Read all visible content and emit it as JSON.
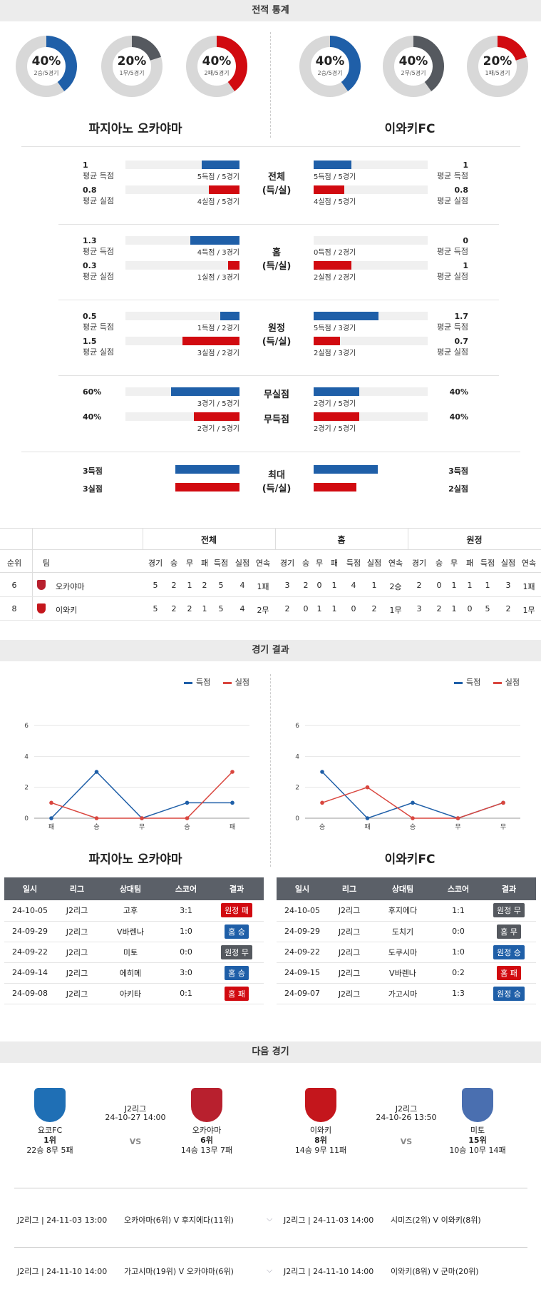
{
  "section_stats": {
    "title": "전적 통계"
  },
  "donuts": [
    {
      "pct": "40%",
      "sub": "2승/5경기",
      "value": 0.4,
      "color": "#1f5fa8"
    },
    {
      "pct": "20%",
      "sub": "1무/5경기",
      "value": 0.2,
      "color": "#55595f"
    },
    {
      "pct": "40%",
      "sub": "2패/5경기",
      "value": 0.4,
      "color": "#d10a10"
    },
    {
      "pct": "40%",
      "sub": "2승/5경기",
      "value": 0.4,
      "color": "#1f5fa8"
    },
    {
      "pct": "40%",
      "sub": "2무/5경기",
      "value": 0.4,
      "color": "#55595f"
    },
    {
      "pct": "20%",
      "sub": "1패/5경기",
      "value": 0.2,
      "color": "#d10a10"
    }
  ],
  "teams": {
    "home": "파지아노 오카야마",
    "away": "이와키FC"
  },
  "stat_groups": [
    {
      "label": "전체\n(득/실)",
      "rows": [
        {
          "l_val": "1",
          "l_lbl": "평균 득점",
          "l_cap": "5득점 / 5경기",
          "l_frac": 0.33,
          "r_val": "1",
          "r_lbl": "평균 득점",
          "r_cap": "5득점 / 5경기",
          "r_frac": 0.33,
          "color": "blue"
        },
        {
          "l_val": "0.8",
          "l_lbl": "평균 실점",
          "l_cap": "4실점 / 5경기",
          "l_frac": 0.27,
          "r_val": "0.8",
          "r_lbl": "평균 실점",
          "r_cap": "4실점 / 5경기",
          "r_frac": 0.27,
          "color": "red"
        }
      ]
    },
    {
      "label": "홈\n(득/실)",
      "rows": [
        {
          "l_val": "1.3",
          "l_lbl": "평균 득점",
          "l_cap": "4득점 / 3경기",
          "l_frac": 0.43,
          "r_val": "0",
          "r_lbl": "평균 득점",
          "r_cap": "0득점 / 2경기",
          "r_frac": 0,
          "color": "blue"
        },
        {
          "l_val": "0.3",
          "l_lbl": "평균 실점",
          "l_cap": "1실점 / 3경기",
          "l_frac": 0.1,
          "r_val": "1",
          "r_lbl": "평균 실점",
          "r_cap": "2실점 / 2경기",
          "r_frac": 0.33,
          "color": "red"
        }
      ]
    },
    {
      "label": "원정\n(득/실)",
      "rows": [
        {
          "l_val": "0.5",
          "l_lbl": "평균 득점",
          "l_cap": "1득점 / 2경기",
          "l_frac": 0.17,
          "r_val": "1.7",
          "r_lbl": "평균 득점",
          "r_cap": "5득점 / 3경기",
          "r_frac": 0.57,
          "color": "blue"
        },
        {
          "l_val": "1.5",
          "l_lbl": "평균 실점",
          "l_cap": "3실점 / 2경기",
          "l_frac": 0.5,
          "r_val": "0.7",
          "r_lbl": "평균 실점",
          "r_cap": "2실점 / 3경기",
          "r_frac": 0.23,
          "color": "red"
        }
      ]
    }
  ],
  "clean_rows": [
    {
      "mid": "무실점",
      "l_val": "60%",
      "l_cap": "3경기 / 5경기",
      "l_frac": 0.6,
      "r_val": "40%",
      "r_cap": "2경기 / 5경기",
      "r_frac": 0.4,
      "color": "blue"
    },
    {
      "mid": "무득점",
      "l_val": "40%",
      "l_cap": "2경기 / 5경기",
      "l_frac": 0.4,
      "r_val": "40%",
      "r_cap": "2경기 / 5경기",
      "r_frac": 0.4,
      "color": "red"
    }
  ],
  "max_group": {
    "label": "최대\n(득/실)",
    "rows": [
      {
        "l_val": "3득점",
        "l_frac": 0.75,
        "r_val": "3득점",
        "r_frac": 0.75,
        "color": "blue"
      },
      {
        "l_val": "3실점",
        "l_frac": 0.75,
        "r_val": "2실점",
        "r_frac": 0.5,
        "color": "red"
      }
    ]
  },
  "standings": {
    "groups": [
      "전체",
      "홈",
      "원정"
    ],
    "cols_left": [
      "순위",
      "팀"
    ],
    "cols": [
      "경기",
      "승",
      "무",
      "패",
      "득점",
      "실점",
      "연속"
    ],
    "rows": [
      {
        "rank": "6",
        "team": "오카야마",
        "vals": [
          "5",
          "2",
          "1",
          "2",
          "5",
          "4",
          "1패",
          "3",
          "2",
          "0",
          "1",
          "4",
          "1",
          "2승",
          "2",
          "0",
          "1",
          "1",
          "1",
          "3",
          "1패"
        ]
      },
      {
        "rank": "8",
        "team": "이와키",
        "vals": [
          "5",
          "2",
          "2",
          "1",
          "5",
          "4",
          "2무",
          "2",
          "0",
          "1",
          "1",
          "0",
          "2",
          "1무",
          "3",
          "2",
          "1",
          "0",
          "5",
          "2",
          "1무"
        ]
      }
    ]
  },
  "section_results": {
    "title": "경기 결과"
  },
  "legend": {
    "scored": "득점",
    "conceded": "실점"
  },
  "chart_data": [
    {
      "type": "line",
      "categories": [
        "패",
        "승",
        "무",
        "승",
        "패"
      ],
      "series": [
        {
          "name": "득점",
          "values": [
            0,
            3,
            0,
            1,
            1
          ],
          "color": "#1f5fa8"
        },
        {
          "name": "실점",
          "values": [
            1,
            0,
            0,
            0,
            3
          ],
          "color": "#d9463e"
        }
      ],
      "y_ticks": [
        0,
        2,
        4,
        6
      ],
      "ylim": [
        0,
        6
      ]
    },
    {
      "type": "line",
      "categories": [
        "승",
        "패",
        "승",
        "무",
        "무"
      ],
      "series": [
        {
          "name": "득점",
          "values": [
            3,
            0,
            1,
            0,
            1
          ],
          "color": "#1f5fa8"
        },
        {
          "name": "실점",
          "values": [
            1,
            2,
            0,
            0,
            1
          ],
          "color": "#d9463e"
        }
      ],
      "y_ticks": [
        0,
        2,
        4,
        6
      ],
      "ylim": [
        0,
        6
      ]
    }
  ],
  "results_tables": [
    {
      "team": "파지아노 오카야마",
      "headers": [
        "일시",
        "리그",
        "상대팀",
        "스코어",
        "결과"
      ],
      "rows": [
        {
          "date": "24-10-05",
          "league": "J2리그",
          "opp": "고후",
          "score": "3:1",
          "result": "원정 패",
          "kind": "loss"
        },
        {
          "date": "24-09-29",
          "league": "J2리그",
          "opp": "V바렌나",
          "score": "1:0",
          "result": "홈 승",
          "kind": "win"
        },
        {
          "date": "24-09-22",
          "league": "J2리그",
          "opp": "미토",
          "score": "0:0",
          "result": "원정 무",
          "kind": "draw"
        },
        {
          "date": "24-09-14",
          "league": "J2리그",
          "opp": "에히메",
          "score": "3:0",
          "result": "홈 승",
          "kind": "win"
        },
        {
          "date": "24-09-08",
          "league": "J2리그",
          "opp": "아키타",
          "score": "0:1",
          "result": "홈 패",
          "kind": "loss"
        }
      ]
    },
    {
      "team": "이와키FC",
      "headers": [
        "일시",
        "리그",
        "상대팀",
        "스코어",
        "결과"
      ],
      "rows": [
        {
          "date": "24-10-05",
          "league": "J2리그",
          "opp": "후지에다",
          "score": "1:1",
          "result": "원정 무",
          "kind": "draw"
        },
        {
          "date": "24-09-29",
          "league": "J2리그",
          "opp": "도치기",
          "score": "0:0",
          "result": "홈 무",
          "kind": "draw"
        },
        {
          "date": "24-09-22",
          "league": "J2리그",
          "opp": "도쿠시마",
          "score": "1:0",
          "result": "원정 승",
          "kind": "win"
        },
        {
          "date": "24-09-15",
          "league": "J2리그",
          "opp": "V바렌나",
          "score": "0:2",
          "result": "홈 패",
          "kind": "loss"
        },
        {
          "date": "24-09-07",
          "league": "J2리그",
          "opp": "가고시마",
          "score": "1:3",
          "result": "원정 승",
          "kind": "win"
        }
      ]
    }
  ],
  "section_next": {
    "title": "다음 경기"
  },
  "next_matches": [
    {
      "league": "J2리그",
      "datetime": "24-10-27 14:00",
      "vs": "VS",
      "home": {
        "name": "요코FC",
        "rank": "1위",
        "record": "22승 8무 5패",
        "logo_color": "#1f6fb5"
      },
      "away": {
        "name": "오카야마",
        "rank": "6위",
        "record": "14승 13무 7패",
        "logo_color": "#b8202e"
      }
    },
    {
      "league": "J2리그",
      "datetime": "24-10-26 13:50",
      "vs": "VS",
      "home": {
        "name": "이와키",
        "rank": "8위",
        "record": "14승 9무 11패",
        "logo_color": "#c4161c"
      },
      "away": {
        "name": "미토",
        "rank": "15위",
        "record": "10승 10무 14패",
        "logo_color": "#4a6fb0"
      }
    }
  ],
  "fixtures": [
    {
      "left": {
        "info": "J2리그 | 24-11-03 13:00",
        "teams": "오카야마(6위) V 후지에다(11위)"
      },
      "right": {
        "info": "J2리그 | 24-11-03 14:00",
        "teams": "시미즈(2위) V 이와키(8위)"
      }
    },
    {
      "left": {
        "info": "J2리그 | 24-11-10 14:00",
        "teams": "가고시마(19위) V 오카야마(6위)"
      },
      "right": {
        "info": "J2리그 | 24-11-10 14:00",
        "teams": "이와키(8위) V 군마(20위)"
      }
    }
  ]
}
